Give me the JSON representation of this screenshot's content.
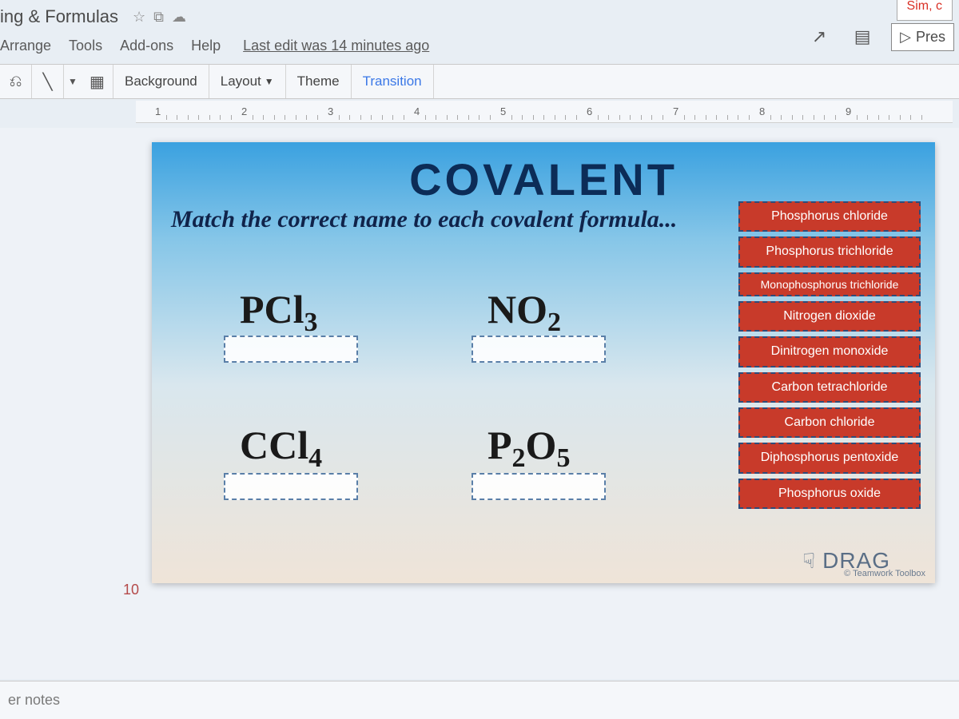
{
  "topTab": "Sim, c",
  "docTitle": "ing & Formulas",
  "menus": {
    "arrange": "Arrange",
    "tools": "Tools",
    "addons": "Add-ons",
    "help": "Help"
  },
  "lastEdit": "Last edit was 14 minutes ago",
  "presentLabel": "Pres",
  "toolbar": {
    "background": "Background",
    "layout": "Layout",
    "theme": "Theme",
    "transition": "Transition"
  },
  "ruler": {
    "start": 1,
    "end": 9
  },
  "slideNumber": "10",
  "slide": {
    "title": "COVALENT",
    "subtitle": "Match the correct name to each covalent formula...",
    "formulas": {
      "f1": {
        "base": "PCl",
        "sub": "3"
      },
      "f2": {
        "base": "NO",
        "sub": "2"
      },
      "f3": {
        "base": "CCl",
        "sub": "4"
      },
      "f4": {
        "base": "P",
        "sub1": "2",
        "mid": "O",
        "sub2": "5"
      }
    },
    "names": [
      "Phosphorus chloride",
      "Phosphorus trichloride",
      "Monophosphorus trichloride",
      "Nitrogen dioxide",
      "Dinitrogen monoxide",
      "Carbon tetrachloride",
      "Carbon chloride",
      "Diphosphorus pentoxide",
      "Phosphorus oxide"
    ],
    "dragLabel": "DRAG",
    "credit": "© Teamwork Toolbox"
  },
  "notesPlaceholder": "er notes",
  "colors": {
    "tileBg": "#c83a2a",
    "tileBorder": "#2d4c7a",
    "slideTitle": "#0c2c57"
  }
}
